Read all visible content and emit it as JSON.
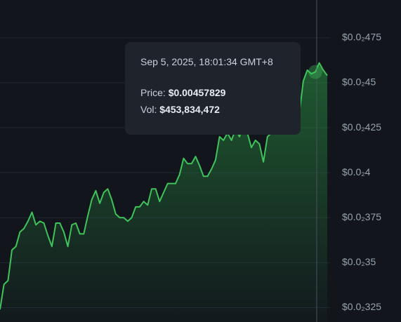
{
  "chart_data": {
    "type": "area",
    "values": [
      0.00324,
      0.00338,
      0.0034,
      0.00357,
      0.00359,
      0.00367,
      0.00369,
      0.00373,
      0.00378,
      0.00371,
      0.00373,
      0.00372,
      0.00365,
      0.00359,
      0.00372,
      0.00372,
      0.00367,
      0.00359,
      0.00371,
      0.00372,
      0.00366,
      0.00366,
      0.00376,
      0.00385,
      0.0039,
      0.00383,
      0.00389,
      0.00391,
      0.00385,
      0.00377,
      0.00375,
      0.00375,
      0.00373,
      0.00375,
      0.00381,
      0.00381,
      0.00384,
      0.00382,
      0.00391,
      0.00391,
      0.00384,
      0.00389,
      0.00394,
      0.00394,
      0.00394,
      0.00399,
      0.00408,
      0.00405,
      0.00405,
      0.00409,
      0.00404,
      0.00398,
      0.00398,
      0.00402,
      0.00407,
      0.0042,
      0.00418,
      0.00422,
      0.00418,
      0.00424,
      0.0042,
      0.00426,
      0.00422,
      0.00414,
      0.00418,
      0.00416,
      0.00406,
      0.0042,
      0.00422,
      0.00426,
      0.00429,
      0.00422,
      0.00429,
      0.00426,
      0.00429,
      0.00433,
      0.00451,
      0.00457,
      0.00455,
      0.00456,
      0.00461,
      0.00457,
      0.00454
    ],
    "color": "#3fc35a",
    "ylim": [
      0.00317,
      0.00496
    ],
    "yticks": [
      {
        "value": 0.00475,
        "label": "$0.0₂475"
      },
      {
        "value": 0.0045,
        "label": "$0.0₂45"
      },
      {
        "value": 0.00425,
        "label": "$0.0₂425"
      },
      {
        "value": 0.004,
        "label": "$0.0₂4"
      },
      {
        "value": 0.00375,
        "label": "$0.0₂375"
      },
      {
        "value": 0.0035,
        "label": "$0.0₂35"
      },
      {
        "value": 0.00325,
        "label": "$0.0₂325"
      }
    ],
    "grid": true,
    "tooltip": {
      "date": "Sep 5, 2025, 18:01:34 GMT+8",
      "price_label": "Price:",
      "price": "$0.00457829",
      "vol_label": "Vol:",
      "vol": "$453,834,472"
    }
  }
}
